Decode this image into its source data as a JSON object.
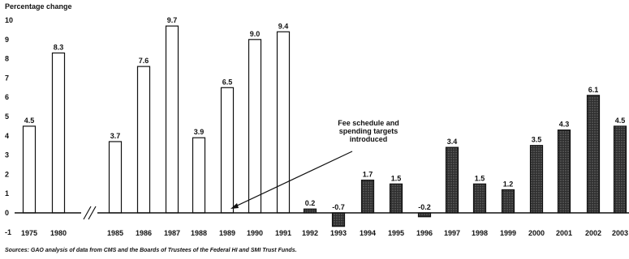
{
  "chart_data": {
    "type": "bar",
    "ylabel": "Percentage change",
    "ylim": [
      -1,
      10
    ],
    "yticks": [
      "-1",
      "0",
      "1",
      "2",
      "3",
      "4",
      "5",
      "6",
      "7",
      "8",
      "9",
      "10"
    ],
    "grid": false,
    "axis_break_between": [
      "1980",
      "1985"
    ],
    "categories": [
      "1975",
      "1980",
      "1985",
      "1986",
      "1987",
      "1988",
      "1989",
      "1990",
      "1991",
      "1992",
      "1993",
      "1994",
      "1995",
      "1996",
      "1997",
      "1998",
      "1999",
      "2000",
      "2001",
      "2002",
      "2003"
    ],
    "values": [
      4.5,
      8.3,
      3.7,
      7.6,
      9.7,
      3.9,
      6.5,
      9.0,
      9.4,
      0.2,
      -0.7,
      1.7,
      1.5,
      -0.2,
      3.4,
      1.5,
      1.2,
      3.5,
      4.3,
      6.1,
      4.5
    ],
    "value_labels": [
      "4.5",
      "8.3",
      "3.7",
      "7.6",
      "9.7",
      "3.9",
      "6.5",
      "9.0",
      "9.4",
      "0.2",
      "-0.7",
      "1.7",
      "1.5",
      "-0.2",
      "3.4",
      "1.5",
      "1.2",
      "3.5",
      "4.3",
      "6.1",
      "4.5"
    ],
    "bar_styles": [
      "outline",
      "outline",
      "outline",
      "outline",
      "outline",
      "outline",
      "outline",
      "outline",
      "outline",
      "shaded",
      "shaded",
      "shaded",
      "shaded",
      "shaded",
      "shaded",
      "shaded",
      "shaded",
      "shaded",
      "shaded",
      "shaded",
      "shaded"
    ],
    "annotation": {
      "text_lines": [
        "Fee schedule and",
        "spending targets",
        "introduced"
      ],
      "points_to": "1992"
    },
    "source": "Sources: GAO analysis of data from CMS and the Boards of Trustees of the Federal HI and SMI Trust Funds."
  },
  "colors": {
    "outline_bar_fill": "#ffffff",
    "shaded_bar_fill": "#3a3a3a",
    "stroke": "#111111"
  }
}
